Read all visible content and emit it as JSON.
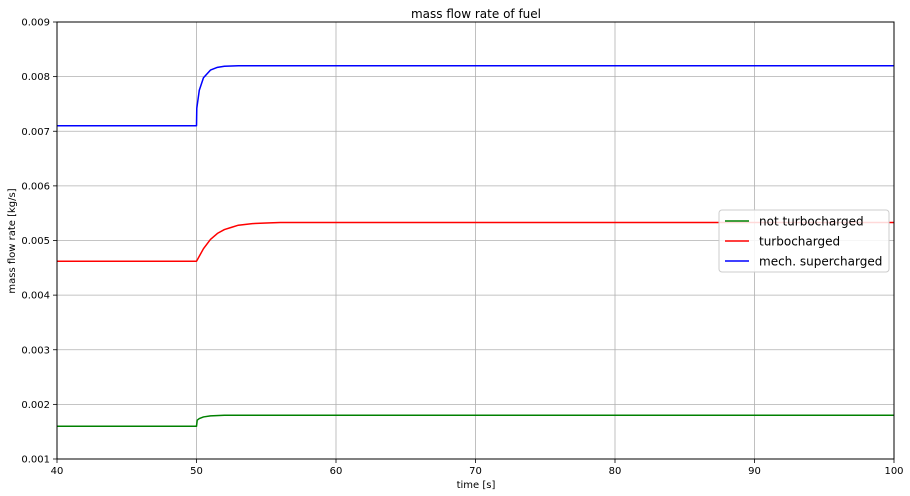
{
  "chart_data": {
    "type": "line",
    "title": "mass flow rate of fuel",
    "xlabel": "time [s]",
    "ylabel": "mass flow rate [kg/s]",
    "xlim": [
      40,
      100
    ],
    "ylim": [
      0.001,
      0.009
    ],
    "xticks": [
      40,
      50,
      60,
      70,
      80,
      90,
      100
    ],
    "xtick_labels": [
      "40",
      "50",
      "60",
      "70",
      "80",
      "90",
      "100"
    ],
    "yticks": [
      0.001,
      0.002,
      0.003,
      0.004,
      0.005,
      0.006,
      0.007,
      0.008,
      0.009
    ],
    "ytick_labels": [
      "0.001",
      "0.002",
      "0.003",
      "0.004",
      "0.005",
      "0.006",
      "0.007",
      "0.008",
      "0.009"
    ],
    "grid": true,
    "legend_position": "center-right",
    "series": [
      {
        "name": "not turbocharged",
        "color": "#008000",
        "x": [
          40,
          49.95,
          50,
          50.05,
          50.2,
          50.5,
          51,
          52,
          55,
          60,
          70,
          80,
          90,
          100
        ],
        "y": [
          0.0016,
          0.0016,
          0.0016,
          0.00171,
          0.00174,
          0.00177,
          0.00179,
          0.0018,
          0.0018,
          0.0018,
          0.0018,
          0.0018,
          0.0018,
          0.0018
        ]
      },
      {
        "name": "turbocharged",
        "color": "#ff0000",
        "x": [
          40,
          49.95,
          50,
          50.5,
          51,
          51.5,
          52,
          52.5,
          53,
          54,
          55,
          56,
          58,
          60,
          70,
          80,
          90,
          100
        ],
        "y": [
          0.00462,
          0.00462,
          0.00462,
          0.00485,
          0.00502,
          0.00513,
          0.0052,
          0.00524,
          0.00528,
          0.00531,
          0.00532,
          0.00533,
          0.00533,
          0.00533,
          0.00533,
          0.00533,
          0.00533,
          0.00533
        ]
      },
      {
        "name": "mech. supercharged",
        "color": "#0000ff",
        "x": [
          40,
          49.95,
          50,
          50.02,
          50.2,
          50.5,
          51,
          51.5,
          52,
          53,
          55,
          60,
          70,
          80,
          90,
          100
        ],
        "y": [
          0.0071,
          0.0071,
          0.0071,
          0.00742,
          0.00775,
          0.00798,
          0.00812,
          0.00817,
          0.00819,
          0.0082,
          0.0082,
          0.0082,
          0.0082,
          0.0082,
          0.0082,
          0.0082
        ]
      }
    ]
  }
}
